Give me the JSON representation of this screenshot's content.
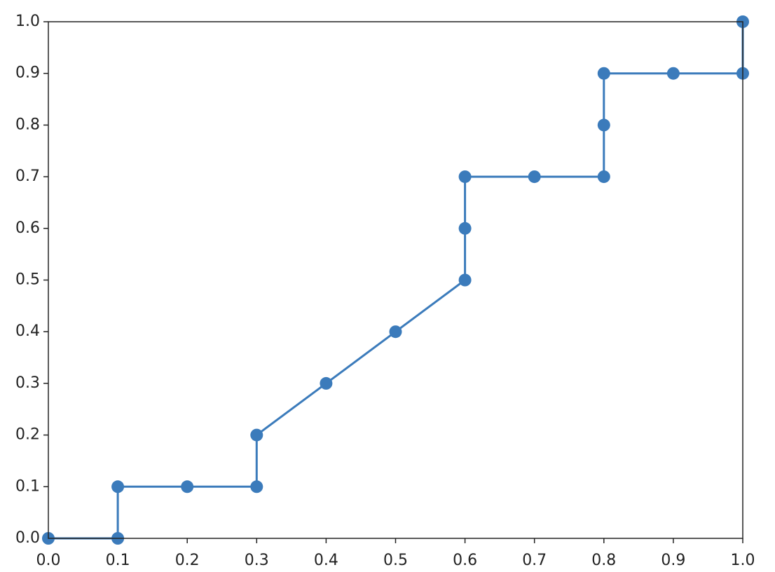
{
  "chart_data": {
    "type": "line",
    "x": [
      0,
      0.1,
      0.1,
      0.2,
      0.3,
      0.3,
      0.4,
      0.5,
      0.6,
      0.6,
      0.6,
      0.7,
      0.8,
      0.8,
      0.8,
      0.9,
      1,
      1
    ],
    "values": [
      0,
      0,
      0.1,
      0.1,
      0.1,
      0.2,
      0.3,
      0.4,
      0.5,
      0.6,
      0.7,
      0.7,
      0.7,
      0.8,
      0.9,
      0.9,
      0.9,
      1
    ],
    "color": "#3b7bbb",
    "markers": true,
    "xlim": [
      0,
      1
    ],
    "ylim": [
      0,
      1
    ],
    "xticks": [
      {
        "value": 0,
        "label": "0.0"
      },
      0.1,
      0.2,
      0.3,
      0.4,
      0.5,
      0.6,
      0.7,
      0.8,
      0.9,
      {
        "value": 1,
        "label": "1.0"
      }
    ],
    "yticks": [
      {
        "value": 0,
        "label": "0.0"
      },
      0.1,
      0.2,
      0.3,
      0.4,
      0.5,
      0.6,
      0.7,
      0.8,
      0.9,
      {
        "value": 1,
        "label": "1.0"
      }
    ],
    "grid": false
  }
}
